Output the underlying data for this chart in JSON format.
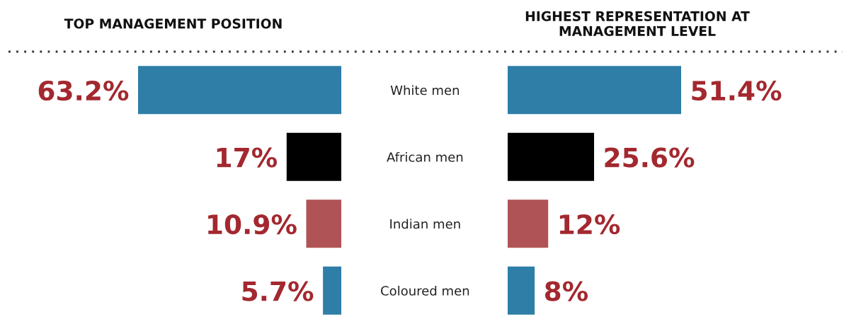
{
  "chart_data": [
    {
      "type": "bar",
      "orientation": "horizontal",
      "title": "TOP MANAGEMENT POSITION",
      "categories": [
        null,
        null,
        null,
        null
      ],
      "values": [
        63.2,
        17,
        10.9,
        5.7
      ],
      "value_labels": [
        "63.2%",
        "17%",
        "10.9%",
        "5.7%"
      ],
      "colors": [
        "#2e7ea8",
        "#000000",
        "#b05356",
        "#2e7ea8"
      ],
      "tick_labels": false
    },
    {
      "type": "bar",
      "orientation": "horizontal",
      "title": "HIGHEST REPRESENTATION AT\nMANAGEMENT LEVEL",
      "categories": [
        "White men",
        "African men",
        "Indian men",
        "Coloured men"
      ],
      "values": [
        51.4,
        25.6,
        12,
        8
      ],
      "value_labels": [
        "51.4%",
        "25.6%",
        "12%",
        "8%"
      ],
      "colors": [
        "#2e7ea8",
        "#000000",
        "#b05356",
        "#2e7ea8"
      ],
      "tick_labels": "y"
    }
  ]
}
